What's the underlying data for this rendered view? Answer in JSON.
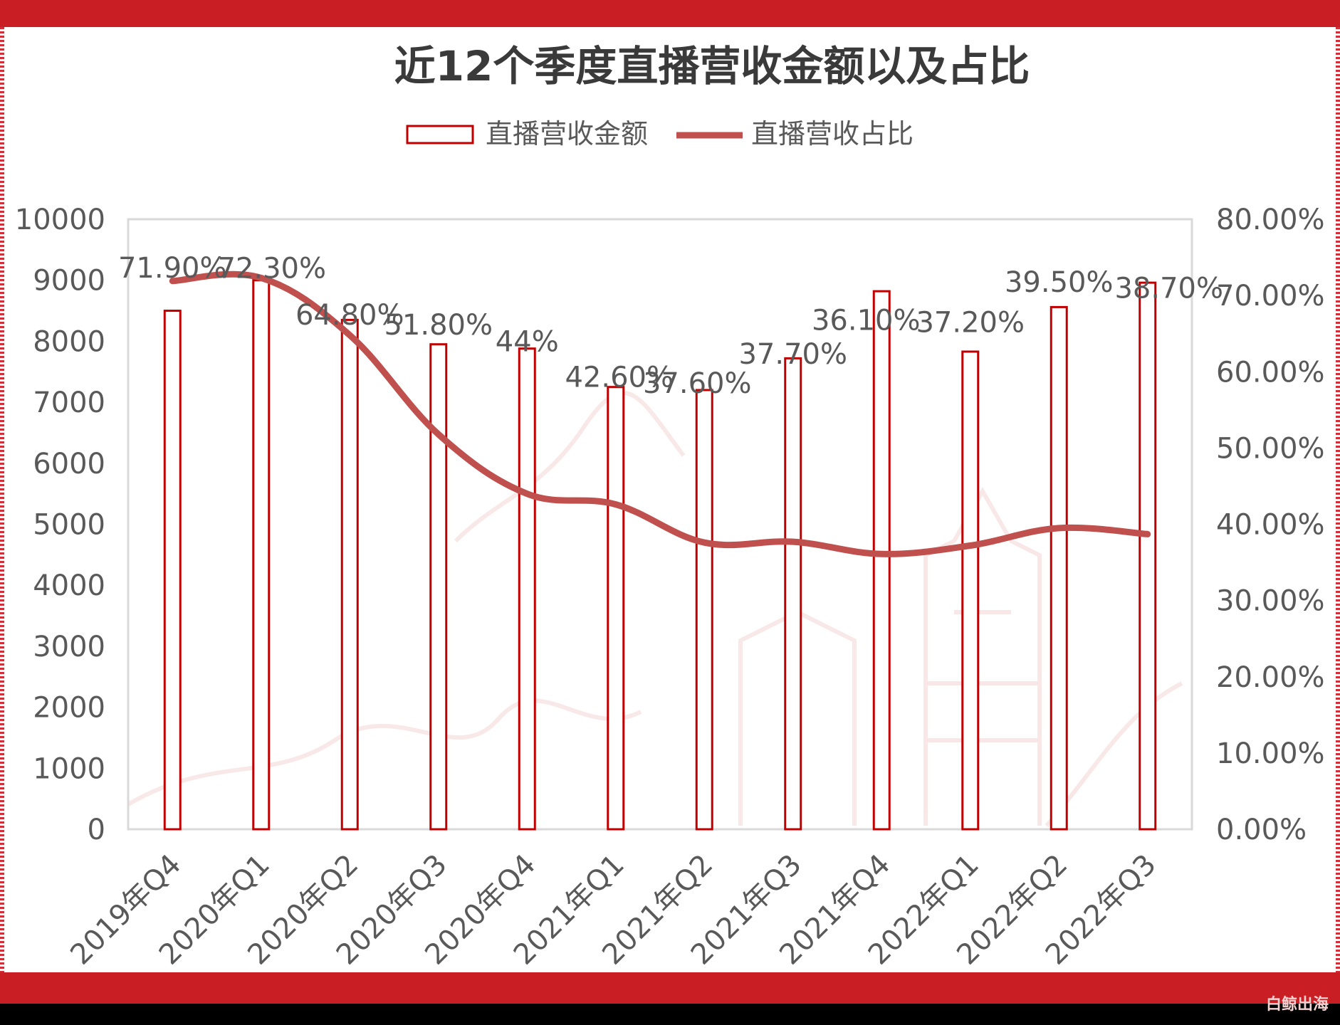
{
  "chart_data": {
    "type": "bar+line",
    "title": "近12个季度直播营收金额以及占比",
    "categories": [
      "2019年Q4",
      "2020年Q1",
      "2020年Q2",
      "2020年Q3",
      "2020年Q4",
      "2021年Q1",
      "2021年Q2",
      "2021年Q3",
      "2021年Q4",
      "2022年Q1",
      "2022年Q2",
      "2022年Q3"
    ],
    "series": [
      {
        "name": "直播营收金额",
        "type": "bar",
        "axis": "left",
        "values": [
          8500,
          9000,
          8350,
          7950,
          7880,
          7250,
          7200,
          7720,
          8820,
          7830,
          8560,
          8960
        ]
      },
      {
        "name": "直播营收占比",
        "type": "line",
        "axis": "right",
        "values": [
          71.9,
          72.3,
          64.8,
          51.8,
          44,
          42.6,
          37.6,
          37.7,
          36.1,
          37.2,
          39.5,
          38.7
        ],
        "labels": [
          "71.90%",
          "72.30%",
          "64.80%",
          "51.80%",
          "44%",
          "42.60%",
          "37.60%",
          "37.70%",
          "36.10%",
          "37.20%",
          "39.50%",
          "38.70%"
        ]
      }
    ],
    "y_left": {
      "ylim": [
        0,
        10000
      ],
      "ticks": [
        "0",
        "1000",
        "2000",
        "3000",
        "4000",
        "5000",
        "6000",
        "7000",
        "8000",
        "9000",
        "10000"
      ]
    },
    "y_right": {
      "ylim": [
        0,
        80
      ],
      "ticks": [
        "0.00%",
        "10.00%",
        "20.00%",
        "30.00%",
        "40.00%",
        "50.00%",
        "60.00%",
        "70.00%",
        "80.00%"
      ]
    },
    "legend_position": "top-center",
    "grid": false
  },
  "colors": {
    "bar_stroke": "#c00000",
    "line": "#c0504d",
    "text": "#595959",
    "title": "#3a3a3a",
    "band": "#c81e24"
  },
  "watermark": "白鲸出海"
}
